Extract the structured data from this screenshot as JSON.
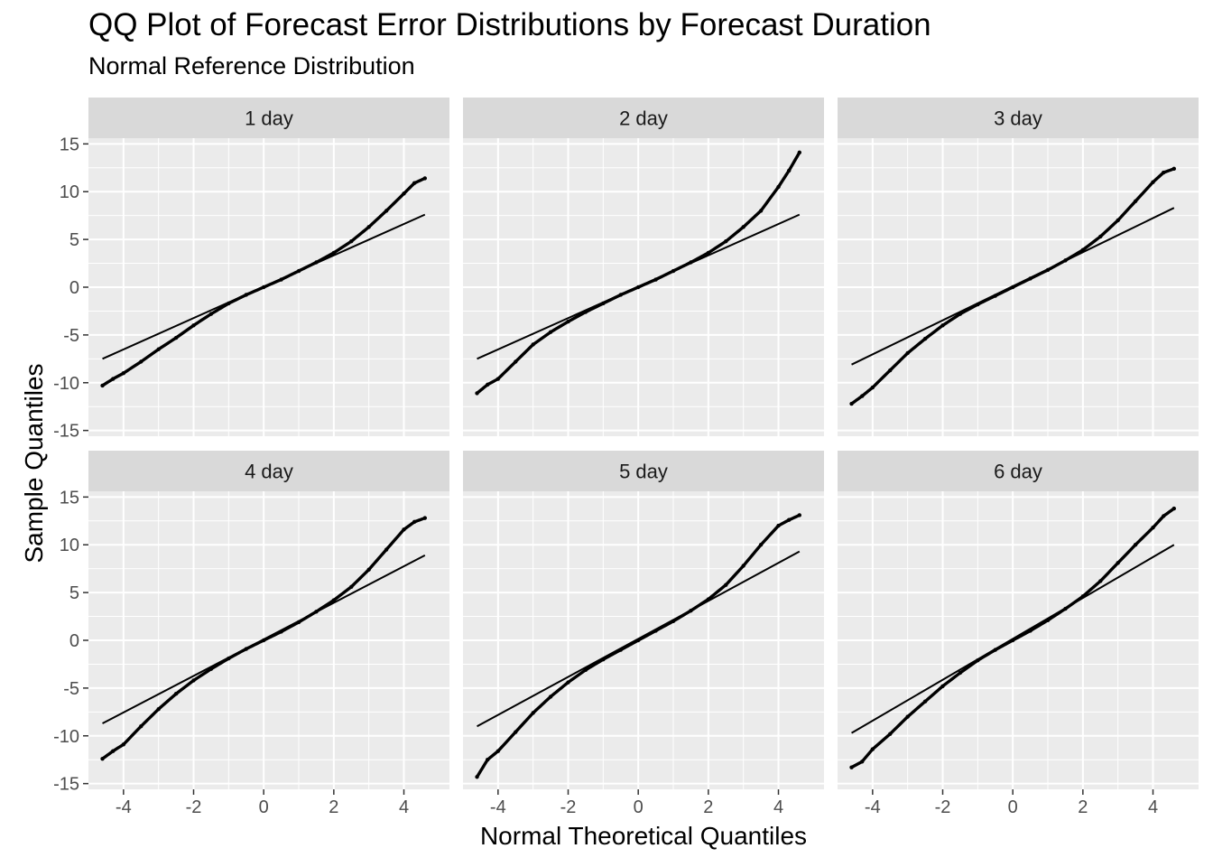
{
  "title": "QQ Plot of Forecast Error Distributions by Forecast Duration",
  "subtitle": "Normal Reference Distribution",
  "chart_data": {
    "type": "scatter",
    "title": "QQ Plot of Forecast Error Distributions by Forecast Duration",
    "subtitle": "Normal Reference Distribution",
    "xlabel": "Normal Theoretical Quantiles",
    "ylabel": "Sample Quantiles",
    "xlim": [
      -5,
      5.3
    ],
    "ylim": [
      -15.6,
      15.6
    ],
    "x_ticks": [
      -4,
      -2,
      0,
      2,
      4
    ],
    "x_tick_labels": [
      "-4",
      "-2",
      "0",
      "2",
      "4"
    ],
    "y_ticks": [
      15,
      10,
      5,
      0,
      -5,
      -10,
      -15
    ],
    "y_tick_labels": [
      "15",
      "10",
      "5",
      "0",
      "-5",
      "-10",
      "-15"
    ],
    "grid": true,
    "facet_layout": "2 rows x 3 columns",
    "panels": [
      {
        "label": "1 day",
        "reference_line": [
          [
            -4.6,
            -7.5
          ],
          [
            4.6,
            7.6
          ]
        ],
        "points": [
          [
            -4.6,
            -10.3
          ],
          [
            -4.3,
            -9.6
          ],
          [
            -4.0,
            -9.0
          ],
          [
            -3.5,
            -7.8
          ],
          [
            -3.0,
            -6.5
          ],
          [
            -2.5,
            -5.3
          ],
          [
            -2.0,
            -4.0
          ],
          [
            -1.5,
            -2.8
          ],
          [
            -1.0,
            -1.7
          ],
          [
            -0.5,
            -0.8
          ],
          [
            0.0,
            0.0
          ],
          [
            0.5,
            0.8
          ],
          [
            1.0,
            1.7
          ],
          [
            1.5,
            2.6
          ],
          [
            2.0,
            3.6
          ],
          [
            2.5,
            4.8
          ],
          [
            3.0,
            6.3
          ],
          [
            3.5,
            8.0
          ],
          [
            4.0,
            9.8
          ],
          [
            4.3,
            10.9
          ],
          [
            4.6,
            11.4
          ]
        ]
      },
      {
        "label": "2 day",
        "reference_line": [
          [
            -4.6,
            -7.5
          ],
          [
            4.6,
            7.6
          ]
        ],
        "points": [
          [
            -4.6,
            -11.1
          ],
          [
            -4.3,
            -10.2
          ],
          [
            -4.0,
            -9.6
          ],
          [
            -3.5,
            -7.8
          ],
          [
            -3.0,
            -6.0
          ],
          [
            -2.5,
            -4.7
          ],
          [
            -2.0,
            -3.6
          ],
          [
            -1.5,
            -2.6
          ],
          [
            -1.0,
            -1.7
          ],
          [
            -0.5,
            -0.8
          ],
          [
            0.0,
            0.0
          ],
          [
            0.5,
            0.8
          ],
          [
            1.0,
            1.7
          ],
          [
            1.5,
            2.6
          ],
          [
            2.0,
            3.6
          ],
          [
            2.5,
            4.8
          ],
          [
            3.0,
            6.3
          ],
          [
            3.5,
            8.0
          ],
          [
            4.0,
            10.5
          ],
          [
            4.3,
            12.2
          ],
          [
            4.6,
            14.1
          ]
        ]
      },
      {
        "label": "3 day",
        "reference_line": [
          [
            -4.6,
            -8.1
          ],
          [
            4.6,
            8.3
          ]
        ],
        "points": [
          [
            -4.6,
            -12.2
          ],
          [
            -4.3,
            -11.4
          ],
          [
            -4.0,
            -10.5
          ],
          [
            -3.5,
            -8.7
          ],
          [
            -3.0,
            -6.9
          ],
          [
            -2.5,
            -5.4
          ],
          [
            -2.0,
            -4.0
          ],
          [
            -1.5,
            -2.8
          ],
          [
            -1.0,
            -1.8
          ],
          [
            -0.5,
            -0.9
          ],
          [
            0.0,
            0.0
          ],
          [
            0.5,
            0.9
          ],
          [
            1.0,
            1.8
          ],
          [
            1.5,
            2.8
          ],
          [
            2.0,
            3.9
          ],
          [
            2.5,
            5.3
          ],
          [
            3.0,
            7.0
          ],
          [
            3.5,
            9.0
          ],
          [
            4.0,
            11.0
          ],
          [
            4.3,
            12.0
          ],
          [
            4.6,
            12.4
          ]
        ]
      },
      {
        "label": "4 day",
        "reference_line": [
          [
            -4.6,
            -8.7
          ],
          [
            4.6,
            8.9
          ]
        ],
        "points": [
          [
            -4.6,
            -12.4
          ],
          [
            -4.3,
            -11.6
          ],
          [
            -4.0,
            -10.9
          ],
          [
            -3.5,
            -9.0
          ],
          [
            -3.0,
            -7.2
          ],
          [
            -2.5,
            -5.6
          ],
          [
            -2.0,
            -4.2
          ],
          [
            -1.5,
            -3.0
          ],
          [
            -1.0,
            -1.9
          ],
          [
            -0.5,
            -0.9
          ],
          [
            0.0,
            0.0
          ],
          [
            0.5,
            0.9
          ],
          [
            1.0,
            1.9
          ],
          [
            1.5,
            3.0
          ],
          [
            2.0,
            4.2
          ],
          [
            2.5,
            5.6
          ],
          [
            3.0,
            7.4
          ],
          [
            3.5,
            9.5
          ],
          [
            4.0,
            11.6
          ],
          [
            4.3,
            12.4
          ],
          [
            4.6,
            12.8
          ]
        ]
      },
      {
        "label": "5 day",
        "reference_line": [
          [
            -4.6,
            -9.0
          ],
          [
            4.6,
            9.3
          ]
        ],
        "points": [
          [
            -4.6,
            -14.3
          ],
          [
            -4.3,
            -12.5
          ],
          [
            -4.0,
            -11.6
          ],
          [
            -3.5,
            -9.6
          ],
          [
            -3.0,
            -7.6
          ],
          [
            -2.5,
            -5.9
          ],
          [
            -2.0,
            -4.4
          ],
          [
            -1.5,
            -3.1
          ],
          [
            -1.0,
            -2.0
          ],
          [
            -0.5,
            -1.0
          ],
          [
            0.0,
            0.0
          ],
          [
            0.5,
            1.0
          ],
          [
            1.0,
            2.0
          ],
          [
            1.5,
            3.1
          ],
          [
            2.0,
            4.3
          ],
          [
            2.5,
            5.8
          ],
          [
            3.0,
            7.8
          ],
          [
            3.5,
            10.0
          ],
          [
            4.0,
            12.0
          ],
          [
            4.3,
            12.6
          ],
          [
            4.6,
            13.1
          ]
        ]
      },
      {
        "label": "6 day",
        "reference_line": [
          [
            -4.6,
            -9.7
          ],
          [
            4.6,
            10.0
          ]
        ],
        "points": [
          [
            -4.6,
            -13.3
          ],
          [
            -4.3,
            -12.7
          ],
          [
            -4.0,
            -11.4
          ],
          [
            -3.5,
            -9.8
          ],
          [
            -3.0,
            -8.0
          ],
          [
            -2.5,
            -6.4
          ],
          [
            -2.0,
            -4.8
          ],
          [
            -1.5,
            -3.4
          ],
          [
            -1.0,
            -2.1
          ],
          [
            -0.5,
            -1.0
          ],
          [
            0.0,
            0.0
          ],
          [
            0.5,
            1.0
          ],
          [
            1.0,
            2.1
          ],
          [
            1.5,
            3.3
          ],
          [
            2.0,
            4.6
          ],
          [
            2.5,
            6.2
          ],
          [
            3.0,
            8.1
          ],
          [
            3.5,
            10.0
          ],
          [
            4.0,
            11.8
          ],
          [
            4.3,
            13.0
          ],
          [
            4.6,
            13.8
          ]
        ]
      }
    ]
  },
  "colors": {
    "panel_background": "#ebebeb",
    "strip_background": "#d9d9d9",
    "gridline": "#ffffff",
    "points": "#000000",
    "reference_line": "#000000",
    "tick_text": "#4d4d4d"
  }
}
